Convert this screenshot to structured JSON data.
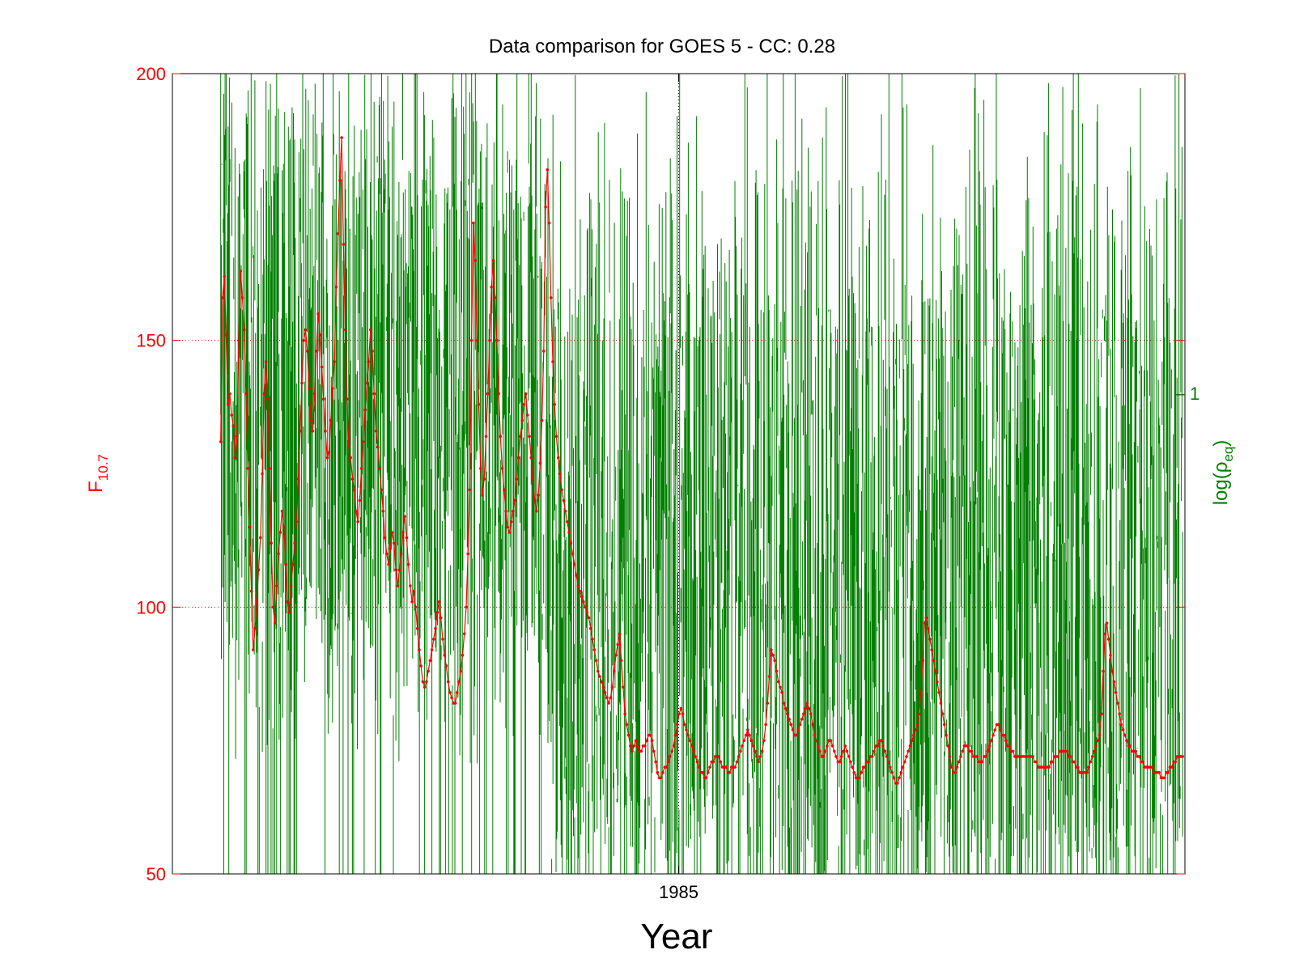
{
  "chart_data": {
    "type": "line",
    "title": "Data comparison for GOES 5 - CC: 0.28",
    "xlabel": "Year",
    "ylabel_left": {
      "base": "F",
      "sub": "10.7"
    },
    "ylabel_right": {
      "pre": "log(ρ",
      "sub": "eq",
      "post": ")"
    },
    "xlim": [
      1983.9,
      1986.1
    ],
    "ylim_left": [
      50,
      200
    ],
    "ylim_right": [
      0,
      1.67
    ],
    "x_ticks": [
      {
        "value": 1985,
        "label": "1985"
      }
    ],
    "y_ticks_left": [
      {
        "value": 50,
        "label": "50"
      },
      {
        "value": 100,
        "label": "100"
      },
      {
        "value": 150,
        "label": "150"
      },
      {
        "value": 200,
        "label": "200"
      }
    ],
    "y_ticks_right": [
      {
        "value": 1,
        "label": "1"
      }
    ],
    "grid": true,
    "colors": {
      "f107": "#ff0000",
      "rho": "#007f00",
      "grid_left": "#ff0000",
      "grid_x": "#000000",
      "axes": "#000000"
    },
    "series": [
      {
        "axis": "left",
        "x_start": 1984.005,
        "x_end": 1986.095,
        "values": [
          131,
          158,
          162,
          151,
          138,
          140,
          136,
          134,
          128,
          132,
          150,
          163,
          158,
          152,
          140,
          126,
          115,
          103,
          92,
          96,
          101,
          107,
          113,
          125,
          140,
          146,
          139,
          126,
          112,
          100,
          97,
          104,
          110,
          114,
          118,
          115,
          108,
          101,
          99,
          104,
          108,
          112,
          116,
          124,
          133,
          142,
          150,
          152,
          148,
          141,
          135,
          133,
          140,
          148,
          155,
          151,
          145,
          139,
          133,
          128,
          129,
          135,
          141,
          146,
          160,
          170,
          180,
          188,
          168,
          152,
          139,
          130,
          128,
          124,
          122,
          118,
          116,
          120,
          126,
          131,
          137,
          142,
          146,
          152,
          148,
          140,
          133,
          130,
          126,
          122,
          118,
          113,
          110,
          108,
          111,
          114,
          112,
          107,
          104,
          107,
          110,
          114,
          117,
          113,
          108,
          104,
          101,
          103,
          100,
          96,
          92,
          89,
          86,
          85,
          86,
          88,
          90,
          92,
          94,
          96,
          99,
          101,
          98,
          94,
          91,
          89,
          86,
          84,
          83,
          82,
          82,
          84,
          86,
          88,
          91,
          95,
          100,
          110,
          122,
          150,
          172,
          165,
          150,
          138,
          126,
          121,
          124,
          132,
          140,
          150,
          160,
          165,
          158,
          150,
          140,
          132,
          126,
          122,
          118,
          115,
          114,
          116,
          118,
          120,
          124,
          128,
          132,
          135,
          138,
          140,
          136,
          132,
          128,
          124,
          120,
          118,
          121,
          127,
          135,
          148,
          175,
          182,
          172,
          158,
          146,
          138,
          132,
          128,
          125,
          122,
          120,
          118,
          116,
          114,
          112,
          110,
          108,
          106,
          104,
          103,
          102,
          101,
          100,
          99,
          98,
          96,
          94,
          92,
          90,
          88,
          87,
          86,
          85,
          84,
          83,
          82,
          83,
          85,
          88,
          91,
          93,
          95,
          90,
          85,
          80,
          78,
          76,
          74,
          73,
          74,
          75,
          74,
          73,
          73,
          74,
          74,
          75,
          76,
          76,
          75,
          73,
          71,
          69,
          68,
          68,
          69,
          70,
          70,
          71,
          72,
          73,
          74,
          76,
          78,
          80,
          81,
          80,
          78,
          77,
          76,
          75,
          74,
          73,
          72,
          71,
          70,
          69,
          69,
          68,
          68,
          69,
          70,
          71,
          71,
          72,
          72,
          72,
          71,
          70,
          70,
          70,
          69,
          69,
          70,
          70,
          70,
          71,
          72,
          73,
          74,
          75,
          76,
          77,
          76,
          75,
          74,
          73,
          72,
          71,
          72,
          73,
          75,
          78,
          82,
          87,
          92,
          91,
          90,
          88,
          86,
          85,
          84,
          82,
          81,
          80,
          79,
          78,
          77,
          76,
          76,
          77,
          78,
          79,
          80,
          81,
          82,
          81,
          80,
          78,
          76,
          75,
          74,
          73,
          72,
          72,
          73,
          74,
          75,
          75,
          74,
          73,
          72,
          71,
          71,
          72,
          73,
          74,
          73,
          72,
          71,
          70,
          69,
          68,
          68,
          68,
          69,
          70,
          70,
          71,
          71,
          72,
          72,
          73,
          74,
          74,
          75,
          75,
          74,
          73,
          72,
          71,
          70,
          69,
          68,
          67,
          67,
          68,
          69,
          70,
          71,
          72,
          73,
          74,
          75,
          76,
          77,
          78,
          80,
          84,
          90,
          97,
          98,
          96,
          94,
          92,
          90,
          88,
          86,
          84,
          82,
          80,
          78,
          76,
          74,
          72,
          70,
          69,
          69,
          70,
          71,
          72,
          73,
          74,
          74,
          74,
          73,
          73,
          72,
          72,
          72,
          71,
          71,
          71,
          72,
          72,
          73,
          74,
          75,
          76,
          77,
          78,
          78,
          77,
          76,
          76,
          75,
          74,
          74,
          73,
          73,
          72,
          72,
          72,
          72,
          72,
          72,
          72,
          72,
          72,
          72,
          72,
          71,
          71,
          70,
          70,
          70,
          70,
          70,
          70,
          70,
          71,
          71,
          72,
          72,
          72,
          73,
          73,
          73,
          73,
          73,
          72,
          72,
          71,
          71,
          70,
          70,
          69,
          69,
          69,
          69,
          69,
          70,
          71,
          72,
          73,
          74,
          75,
          76,
          80,
          88,
          95,
          97,
          94,
          91,
          88,
          86,
          84,
          82,
          80,
          78,
          77,
          76,
          75,
          74,
          74,
          73,
          73,
          73,
          72,
          72,
          71,
          71,
          70,
          70,
          70,
          70,
          70,
          69,
          69,
          69,
          69,
          68,
          68,
          68,
          69,
          69,
          70,
          70,
          71,
          71,
          72,
          72,
          72,
          72
        ]
      },
      {
        "axis": "right",
        "x_start": 1984.005,
        "x_end": 1986.095,
        "count": 1550,
        "seed": 428,
        "style": "vertical-spikes"
      }
    ]
  }
}
